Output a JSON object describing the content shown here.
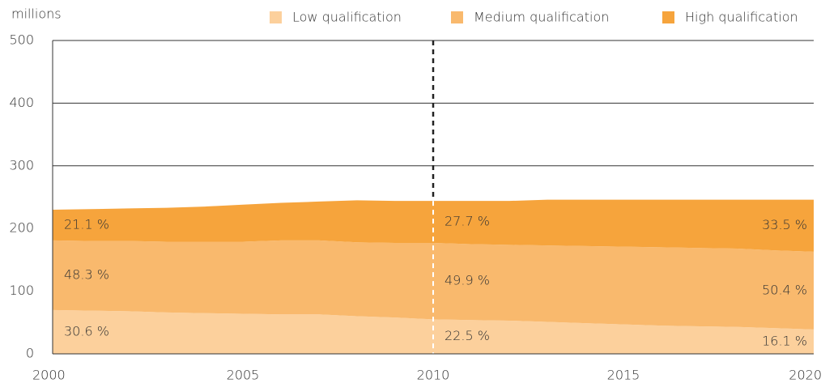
{
  "chart_data": {
    "type": "stacked_area",
    "y_axis_label": "millions",
    "x": [
      2000,
      2001,
      2002,
      2003,
      2004,
      2005,
      2006,
      2007,
      2008,
      2009,
      2010,
      2011,
      2012,
      2013,
      2014,
      2015,
      2016,
      2017,
      2018,
      2019,
      2020
    ],
    "series": [
      {
        "name": "Low qualification",
        "color": "#fcd09c",
        "values": [
          70,
          69,
          68,
          66,
          65,
          64,
          63,
          63,
          60,
          58,
          55,
          54,
          53,
          51,
          49,
          47,
          45,
          44,
          43,
          41,
          39
        ],
        "labels": [
          {
            "x": 2000,
            "label": "30.6 %"
          },
          {
            "x": 2010,
            "label": "22.5 %"
          },
          {
            "x": 2020,
            "label": "16.1 %"
          }
        ]
      },
      {
        "name": "Medium qualification",
        "color": "#f9b96d",
        "values": [
          111,
          111,
          112,
          113,
          114,
          115,
          118,
          118,
          118,
          119,
          122,
          121,
          121,
          122,
          123,
          124,
          125,
          125,
          125,
          124,
          124
        ],
        "labels": [
          {
            "x": 2000,
            "label": "48.3 %"
          },
          {
            "x": 2010,
            "label": "49.9 %"
          },
          {
            "x": 2020,
            "label": "50.4 %"
          }
        ]
      },
      {
        "name": "High qualification",
        "color": "#f6a43c",
        "values": [
          49,
          51,
          52,
          54,
          56,
          59,
          60,
          62,
          67,
          67,
          67,
          69,
          70,
          73,
          74,
          75,
          76,
          77,
          78,
          81,
          83
        ],
        "labels": [
          {
            "x": 2000,
            "label": "21.1 %"
          },
          {
            "x": 2010,
            "label": "27.7 %"
          },
          {
            "x": 2020,
            "label": "33.5 %"
          }
        ]
      }
    ],
    "marker_x": 2010,
    "xlim": [
      2000,
      2020
    ],
    "xticks": [
      2000,
      2005,
      2010,
      2015,
      2020
    ],
    "ylim": [
      0,
      500
    ],
    "yticks": [
      0,
      100,
      200,
      300,
      400,
      500
    ],
    "grid": true,
    "legend": "top"
  }
}
